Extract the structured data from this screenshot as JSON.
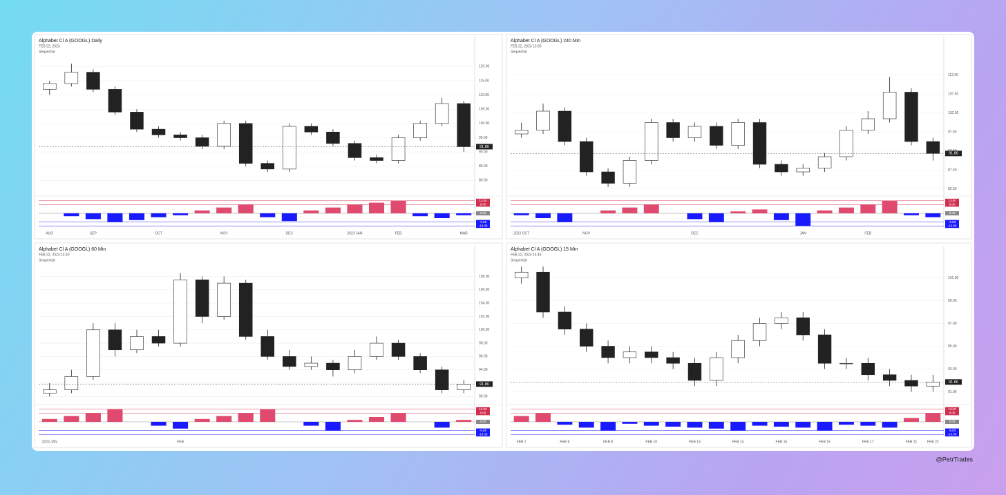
{
  "watermark": "@PetrTrades",
  "chart_data": [
    {
      "type": "candlestick",
      "title": "Alphabet Cl A (GOOGL) Daily",
      "subtitle": "FEB 22, 2023",
      "indicator": "Sequential",
      "categories": [
        "AUG",
        null,
        "SEP",
        null,
        null,
        "OCT",
        null,
        null,
        "NOV",
        null,
        null,
        "DEC",
        null,
        null,
        "2023 JAN",
        null,
        "FEB",
        null,
        null,
        "MAR"
      ],
      "open": [
        112,
        114,
        118,
        112,
        104,
        98,
        96,
        95,
        92,
        100,
        86,
        84,
        99,
        97,
        93,
        88,
        87,
        95,
        100,
        107
      ],
      "high": [
        115,
        121,
        119,
        113,
        105,
        99,
        97,
        96,
        101,
        101,
        87,
        100,
        100,
        98,
        94,
        89,
        96,
        101,
        109,
        108
      ],
      "low": [
        110,
        113,
        111,
        103,
        97,
        95,
        94,
        91,
        91,
        85,
        83,
        83,
        96,
        92,
        87,
        86,
        86,
        94,
        99,
        90
      ],
      "close": [
        114,
        118,
        112,
        104,
        98,
        96,
        95,
        92,
        100,
        86,
        84,
        99,
        97,
        93,
        88,
        87,
        95,
        100,
        107,
        91.86
      ],
      "last": 91.86,
      "up_color": "#ffffff",
      "down_color": "#222222",
      "ylim": [
        75,
        123
      ],
      "yticks": [
        {
          "value": 80,
          "label": "80.00"
        },
        {
          "value": 85,
          "label": "85.00"
        },
        {
          "value": 90,
          "label": "90.00"
        },
        {
          "value": 95,
          "label": "95.00"
        },
        {
          "value": 100,
          "label": "100.00"
        },
        {
          "value": 105,
          "label": "105.00"
        },
        {
          "value": 110,
          "label": "110.00"
        },
        {
          "value": 115,
          "label": "115.00"
        },
        {
          "value": 120,
          "label": "120.00"
        }
      ],
      "indicator_values": [
        0,
        -3,
        -6,
        -9,
        -7,
        -4,
        -2,
        3,
        6,
        9,
        -4,
        -8,
        3,
        6,
        9,
        11,
        13,
        -3,
        -5,
        -2
      ],
      "indicator_color": "#1a1aff",
      "indicator_pos_color": "#e04a6e",
      "indicator_ylim": [
        -15,
        15
      ],
      "indicator_ticks": [
        {
          "value": 13,
          "label": "13.00"
        },
        {
          "value": 9,
          "label": "9.00"
        },
        {
          "value": 0,
          "label": "0.00"
        },
        {
          "value": -9,
          "label": "-9.00"
        },
        {
          "value": -13,
          "label": "-13.00"
        }
      ],
      "grid": true
    },
    {
      "type": "candlestick",
      "title": "Alphabet Cl A (GOOGL) 240 Min",
      "subtitle": "FEB 22, 2023 13:30",
      "indicator": "Sequential",
      "categories": [
        "2022 OCT",
        null,
        null,
        "NOV",
        null,
        null,
        null,
        null,
        "DEC",
        null,
        null,
        null,
        null,
        "JAN",
        null,
        null,
        "FEB",
        null,
        null,
        null
      ],
      "open": [
        97,
        98,
        103,
        95,
        87,
        84,
        90,
        100,
        96,
        99,
        94,
        100,
        89,
        87,
        88,
        91,
        98,
        101,
        108,
        95
      ],
      "high": [
        100,
        105,
        104,
        96,
        88,
        91,
        101,
        101,
        100,
        100,
        101,
        101,
        90,
        89,
        92,
        99,
        103,
        112,
        109,
        96
      ],
      "low": [
        96,
        97,
        94,
        86,
        83,
        83,
        89,
        95,
        95,
        93,
        93,
        88,
        86,
        86,
        87,
        90,
        97,
        100,
        94,
        90
      ],
      "close": [
        98,
        103,
        95,
        87,
        84,
        90,
        100,
        96,
        99,
        94,
        100,
        89,
        87,
        88,
        91,
        98,
        101,
        108,
        95,
        91.86
      ],
      "last": 91.86,
      "up_color": "#ffffff",
      "down_color": "#222222",
      "ylim": [
        81,
        117
      ],
      "yticks": [
        {
          "value": 82.5,
          "label": "82.50"
        },
        {
          "value": 87.5,
          "label": "87.50"
        },
        {
          "value": 92.5,
          "label": "92.50"
        },
        {
          "value": 97.5,
          "label": "97.50"
        },
        {
          "value": 102.5,
          "label": "102.50"
        },
        {
          "value": 107.5,
          "label": "107.50"
        },
        {
          "value": 112.5,
          "label": "112.50"
        }
      ],
      "indicator_values": [
        -2,
        -5,
        -9,
        0,
        3,
        6,
        9,
        0,
        -6,
        -9,
        2,
        4,
        -7,
        -13,
        3,
        6,
        9,
        13,
        -2,
        -4
      ],
      "indicator_color": "#1a1aff",
      "indicator_pos_color": "#e04a6e",
      "indicator_ylim": [
        -15,
        15
      ],
      "indicator_ticks": [
        {
          "value": 13,
          "label": "13.00"
        },
        {
          "value": 9,
          "label": "9.00"
        },
        {
          "value": 0,
          "label": "0.00"
        },
        {
          "value": -9,
          "label": "-9.00"
        },
        {
          "value": -13,
          "label": "-13.00"
        }
      ],
      "grid": true
    },
    {
      "type": "candlestick",
      "title": "Alphabet Cl A (GOOGL) 60 Min",
      "subtitle": "FEB 22, 2023 14:30",
      "indicator": "Sequential",
      "categories": [
        "2023 JAN",
        null,
        null,
        null,
        null,
        null,
        "FEB",
        null,
        null,
        null,
        null,
        null,
        null,
        null,
        null,
        null,
        null,
        null,
        null,
        null
      ],
      "open": [
        90.5,
        91,
        93,
        100,
        97,
        99,
        98,
        107.5,
        102,
        107,
        99,
        96,
        94.5,
        95,
        94,
        96,
        98,
        96,
        94,
        91
      ],
      "high": [
        92,
        94,
        101,
        101,
        100,
        100,
        108.5,
        108,
        108,
        107.5,
        100,
        97,
        96,
        95.5,
        97,
        99,
        98.5,
        96.5,
        94.5,
        92.5
      ],
      "low": [
        90,
        90.5,
        92.5,
        96,
        96.5,
        97.5,
        97.5,
        101,
        101.5,
        98.5,
        95.5,
        94,
        94,
        93,
        93.5,
        95.5,
        95.5,
        93.5,
        90.5,
        90.5
      ],
      "close": [
        91,
        93,
        100,
        97,
        99,
        98,
        107.5,
        102,
        107,
        99,
        96,
        94.5,
        95,
        94,
        96,
        98,
        96,
        94,
        91,
        91.86
      ],
      "last": 91.86,
      "up_color": "#ffffff",
      "down_color": "#222222",
      "ylim": [
        89,
        109.5
      ],
      "yticks": [
        {
          "value": 90,
          "label": "90.00"
        },
        {
          "value": 92,
          "label": "92.00"
        },
        {
          "value": 94,
          "label": "94.00"
        },
        {
          "value": 96,
          "label": "96.00"
        },
        {
          "value": 98,
          "label": "98.00"
        },
        {
          "value": 100,
          "label": "100.00"
        },
        {
          "value": 102,
          "label": "102.00"
        },
        {
          "value": 104,
          "label": "104.00"
        },
        {
          "value": 106,
          "label": "106.00"
        },
        {
          "value": 108,
          "label": "108.00"
        }
      ],
      "indicator_values": [
        3,
        6,
        9,
        13,
        0,
        -4,
        -7,
        3,
        6,
        9,
        13,
        0,
        -4,
        -9,
        2,
        5,
        9,
        0,
        -6,
        2
      ],
      "indicator_color": "#1a1aff",
      "indicator_pos_color": "#e04a6e",
      "indicator_ylim": [
        -15,
        15
      ],
      "indicator_ticks": [
        {
          "value": 13,
          "label": "13.00"
        },
        {
          "value": 9,
          "label": "9.00"
        },
        {
          "value": 0,
          "label": "0.00"
        },
        {
          "value": -9,
          "label": "-9.00"
        },
        {
          "value": -13,
          "label": "-13.00"
        }
      ],
      "grid": true
    },
    {
      "type": "candlestick",
      "title": "Alphabet Cl A (GOOGL) 15 Min",
      "subtitle": "FEB 22, 2023 14:45",
      "indicator": "Sequential",
      "categories": [
        "FEB 7",
        null,
        "FEB 8",
        null,
        "FEB 9",
        null,
        "FEB 10",
        null,
        "FEB 13",
        null,
        "FEB 14",
        null,
        "FEB 15",
        null,
        "FEB 16",
        null,
        "FEB 17",
        null,
        "FEB 21",
        "FEB 22"
      ],
      "open": [
        101,
        101.5,
        98,
        96.5,
        95,
        94,
        94.5,
        94,
        93.5,
        92,
        94,
        95.5,
        97,
        97.5,
        96,
        93.5,
        93.5,
        92.5,
        92,
        91.5
      ],
      "high": [
        102,
        102,
        98.5,
        97,
        95.5,
        95,
        95,
        94.5,
        94,
        94.5,
        96,
        97.5,
        98,
        98,
        96.5,
        94,
        94,
        93,
        92.5,
        92.5
      ],
      "low": [
        100.5,
        97.5,
        96,
        94.5,
        93.5,
        93.5,
        93.5,
        93,
        91.5,
        91.5,
        93.5,
        95,
        96.5,
        95.5,
        93,
        93,
        92,
        91.5,
        91,
        91
      ],
      "close": [
        101.5,
        98,
        96.5,
        95,
        94,
        94.5,
        94,
        93.5,
        92,
        94,
        95.5,
        97,
        97.5,
        96,
        93.5,
        93.5,
        92.5,
        92,
        91.5,
        91.86
      ],
      "last": 91.86,
      "up_color": "#ffffff",
      "down_color": "#222222",
      "ylim": [
        90,
        102
      ],
      "yticks": [
        {
          "value": 91,
          "label": "91.00"
        },
        {
          "value": 93,
          "label": "93.00"
        },
        {
          "value": 95,
          "label": "95.00"
        },
        {
          "value": 97,
          "label": "97.00"
        },
        {
          "value": 99,
          "label": "99.00"
        },
        {
          "value": 101,
          "label": "101.00"
        }
      ],
      "indicator_values": [
        6,
        9,
        -3,
        -6,
        -9,
        -2,
        -4,
        -5,
        -6,
        -7,
        -9,
        -4,
        -5,
        -6,
        -9,
        -3,
        -4,
        -6,
        4,
        9
      ],
      "indicator_color": "#1a1aff",
      "indicator_pos_color": "#e04a6e",
      "indicator_ylim": [
        -15,
        15
      ],
      "indicator_ticks": [
        {
          "value": 13,
          "label": "13.00"
        },
        {
          "value": 9,
          "label": "9.00"
        },
        {
          "value": 0,
          "label": "0.00"
        },
        {
          "value": -9,
          "label": "-9.00"
        },
        {
          "value": -13,
          "label": "-13.00"
        }
      ],
      "grid": true
    }
  ]
}
